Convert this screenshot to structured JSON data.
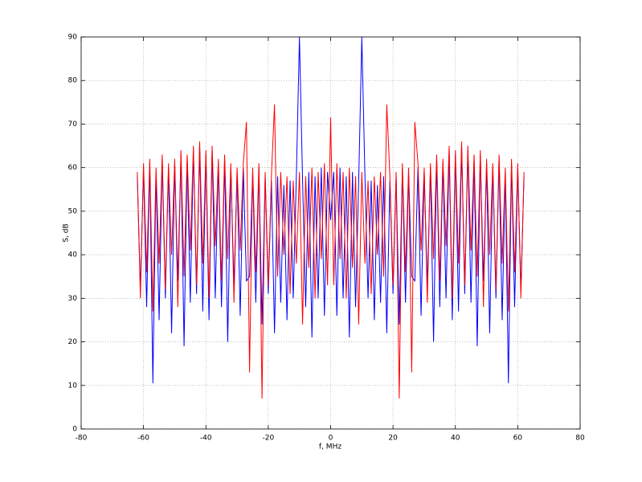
{
  "chart_data": {
    "type": "line",
    "x_label": "f, MHz",
    "y_label": "S, dB",
    "xlim": [
      -80,
      80
    ],
    "ylim": [
      0,
      90
    ],
    "xticks": [
      -80,
      -60,
      -40,
      -20,
      0,
      20,
      40,
      60,
      80
    ],
    "yticks": [
      0,
      10,
      20,
      30,
      40,
      50,
      60,
      70,
      80,
      90
    ],
    "grid": true,
    "x": [
      -62,
      -61,
      -60,
      -59,
      -58,
      -57,
      -56,
      -55,
      -54,
      -53,
      -52,
      -51,
      -50,
      -49,
      -48,
      -47,
      -46,
      -45,
      -44,
      -43,
      -42,
      -41,
      -40,
      -39,
      -38,
      -37,
      -36,
      -35,
      -34,
      -33,
      -32,
      -31,
      -30,
      -29,
      -28,
      -27,
      -26,
      -25,
      -24,
      -23,
      -22,
      -21,
      -20,
      -19,
      -18,
      -17,
      -16,
      -15,
      -14,
      -13,
      -12,
      -11,
      -10,
      -9,
      -8,
      -7,
      -6,
      -5,
      -4,
      -3,
      -2,
      -1,
      0,
      1,
      2,
      3,
      4,
      5,
      6,
      7,
      8,
      9,
      10,
      11,
      12,
      13,
      14,
      15,
      16,
      17,
      18,
      19,
      20,
      21,
      22,
      23,
      24,
      25,
      26,
      27,
      28,
      29,
      30,
      31,
      32,
      33,
      34,
      35,
      36,
      37,
      38,
      39,
      40,
      41,
      42,
      43,
      44,
      45,
      46,
      47,
      48,
      49,
      50,
      51,
      52,
      53,
      54,
      55,
      56,
      57,
      58,
      59,
      60,
      61,
      62
    ],
    "series": [
      {
        "color": "#0000ff",
        "values": [
          58,
          32,
          60,
          28,
          61,
          10.5,
          59,
          25,
          62,
          30,
          60,
          22,
          61,
          34,
          63,
          19,
          62,
          29,
          64,
          31,
          65,
          27,
          63,
          25,
          64,
          30,
          61,
          28,
          62,
          20,
          60,
          33,
          59,
          26,
          60,
          34,
          35,
          59,
          29,
          60,
          24,
          58,
          31,
          57,
          22,
          58,
          29,
          56,
          25,
          57,
          30,
          58,
          90,
          57,
          28,
          59,
          21,
          58,
          30,
          60,
          26,
          59,
          48,
          59,
          26,
          60,
          30,
          58,
          21,
          59,
          28,
          57,
          90,
          58,
          30,
          57,
          25,
          56,
          29,
          58,
          22,
          57,
          31,
          58,
          24,
          60,
          29,
          59,
          35,
          34,
          60,
          26,
          59,
          33,
          60,
          20,
          62,
          28,
          61,
          30,
          64,
          25,
          63,
          27,
          65,
          31,
          64,
          29,
          62,
          19,
          63,
          34,
          61,
          22,
          60,
          30,
          62,
          25,
          59,
          10.5,
          61,
          28,
          60,
          32,
          58
        ]
      },
      {
        "color": "#ff0000",
        "values": [
          59,
          30,
          61,
          36,
          62,
          27,
          60,
          38,
          63,
          32,
          61,
          40,
          62,
          28,
          64,
          35,
          63,
          41,
          65,
          33,
          66,
          38,
          64,
          30,
          65,
          42,
          62,
          34,
          63,
          39,
          61,
          29,
          60,
          41,
          61,
          70.5,
          13,
          60,
          36,
          61,
          7,
          59,
          33,
          58,
          74.5,
          35,
          59,
          40,
          58,
          31,
          57,
          38,
          59,
          24,
          58,
          37,
          60,
          30,
          59,
          39,
          61,
          33,
          71.5,
          33,
          61,
          39,
          59,
          30,
          60,
          37,
          58,
          24,
          59,
          38,
          57,
          31,
          58,
          40,
          59,
          35,
          74.5,
          58,
          33,
          59,
          7,
          61,
          36,
          60,
          13,
          70.5,
          61,
          41,
          60,
          29,
          61,
          39,
          63,
          34,
          62,
          42,
          65,
          30,
          64,
          38,
          66,
          33,
          65,
          41,
          63,
          35,
          64,
          28,
          62,
          40,
          61,
          32,
          63,
          38,
          60,
          27,
          62,
          36,
          61,
          30,
          59
        ]
      }
    ]
  }
}
